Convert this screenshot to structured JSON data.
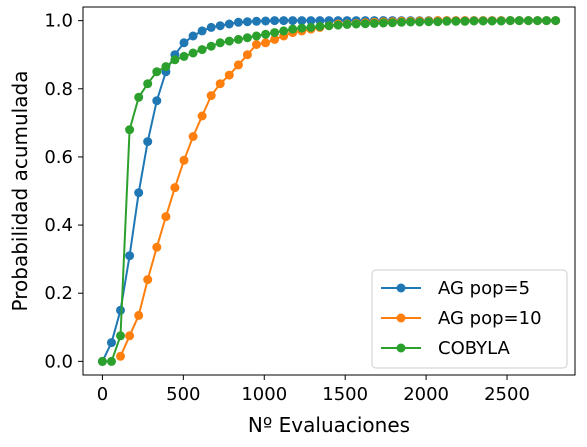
{
  "chart_data": {
    "type": "line",
    "xlabel": "Nº Evaluaciones",
    "ylabel": "Probabilidad acumulada",
    "xlim": [
      -120,
      2920
    ],
    "ylim": [
      -0.04,
      1.04
    ],
    "xticks": [
      0,
      500,
      1000,
      1500,
      2000,
      2500
    ],
    "yticks": [
      0.0,
      0.2,
      0.4,
      0.6,
      0.8,
      1.0
    ],
    "ytick_labels": [
      "0.0",
      "0.2",
      "0.4",
      "0.6",
      "0.8",
      "1.0"
    ],
    "grid": false,
    "legend_position": "lower right",
    "series": [
      {
        "name": "AG pop=5",
        "color": "#1f77b4",
        "x": [
          0,
          56,
          112,
          168,
          224,
          280,
          336,
          392,
          448,
          504,
          560,
          616,
          672,
          728,
          784,
          840,
          896,
          952,
          1008,
          1064,
          1120,
          1176,
          1232,
          1288,
          1344,
          1400,
          1456,
          1512,
          1568,
          1624,
          1680,
          1736,
          1792,
          1848,
          1904,
          1960,
          2016,
          2072,
          2128,
          2184,
          2240,
          2296,
          2352,
          2408,
          2464,
          2520,
          2576,
          2632,
          2688,
          2744,
          2800
        ],
        "y": [
          0.0,
          0.055,
          0.15,
          0.31,
          0.495,
          0.645,
          0.765,
          0.85,
          0.9,
          0.935,
          0.955,
          0.97,
          0.98,
          0.985,
          0.99,
          0.995,
          0.997,
          0.998,
          0.999,
          1,
          1,
          1,
          1,
          1,
          1,
          1,
          1,
          1,
          1,
          1,
          1,
          1,
          1,
          1,
          1,
          1,
          1,
          1,
          1,
          1,
          1,
          1,
          1,
          1,
          1,
          1,
          1,
          1,
          1,
          1,
          1
        ]
      },
      {
        "name": "AG pop=10",
        "color": "#ff7f0e",
        "x": [
          112,
          168,
          224,
          280,
          336,
          392,
          448,
          504,
          560,
          616,
          672,
          728,
          784,
          840,
          896,
          952,
          1008,
          1064,
          1120,
          1176,
          1232,
          1288,
          1344,
          1400,
          1456,
          1512,
          1568,
          1624,
          1680,
          1736,
          1792,
          1848,
          1904,
          1960,
          2016,
          2072,
          2128,
          2184,
          2240,
          2296,
          2352,
          2408,
          2464,
          2520,
          2576,
          2632,
          2688,
          2744,
          2800
        ],
        "y": [
          0.015,
          0.075,
          0.135,
          0.24,
          0.335,
          0.425,
          0.51,
          0.59,
          0.66,
          0.72,
          0.78,
          0.815,
          0.84,
          0.87,
          0.9,
          0.93,
          0.935,
          0.945,
          0.955,
          0.965,
          0.97,
          0.975,
          0.98,
          0.985,
          0.99,
          0.99,
          0.992,
          0.994,
          0.995,
          0.996,
          0.997,
          0.998,
          0.998,
          0.999,
          0.999,
          1,
          1,
          1,
          1,
          1,
          1,
          1,
          1,
          1,
          1,
          1,
          1,
          1,
          1
        ]
      },
      {
        "name": "COBYLA",
        "color": "#2ca02c",
        "x": [
          0,
          56,
          112,
          168,
          224,
          280,
          336,
          392,
          448,
          504,
          560,
          616,
          672,
          728,
          784,
          840,
          896,
          952,
          1008,
          1064,
          1120,
          1176,
          1232,
          1288,
          1344,
          1400,
          1456,
          1512,
          1568,
          1624,
          1680,
          1736,
          1792,
          1848,
          1904,
          1960,
          2016,
          2072,
          2128,
          2184,
          2240,
          2296,
          2352,
          2408,
          2464,
          2520,
          2576,
          2632,
          2688,
          2744,
          2800
        ],
        "y": [
          0.0,
          0.0,
          0.075,
          0.68,
          0.775,
          0.815,
          0.85,
          0.865,
          0.885,
          0.895,
          0.905,
          0.915,
          0.925,
          0.935,
          0.94,
          0.945,
          0.95,
          0.955,
          0.96,
          0.965,
          0.97,
          0.975,
          0.978,
          0.98,
          0.983,
          0.985,
          0.987,
          0.989,
          0.99,
          0.991,
          0.992,
          0.993,
          0.994,
          0.995,
          0.996,
          0.996,
          0.997,
          0.997,
          0.998,
          0.998,
          0.998,
          0.999,
          0.999,
          0.999,
          0.999,
          1,
          1,
          1,
          1,
          1,
          1
        ]
      }
    ]
  }
}
